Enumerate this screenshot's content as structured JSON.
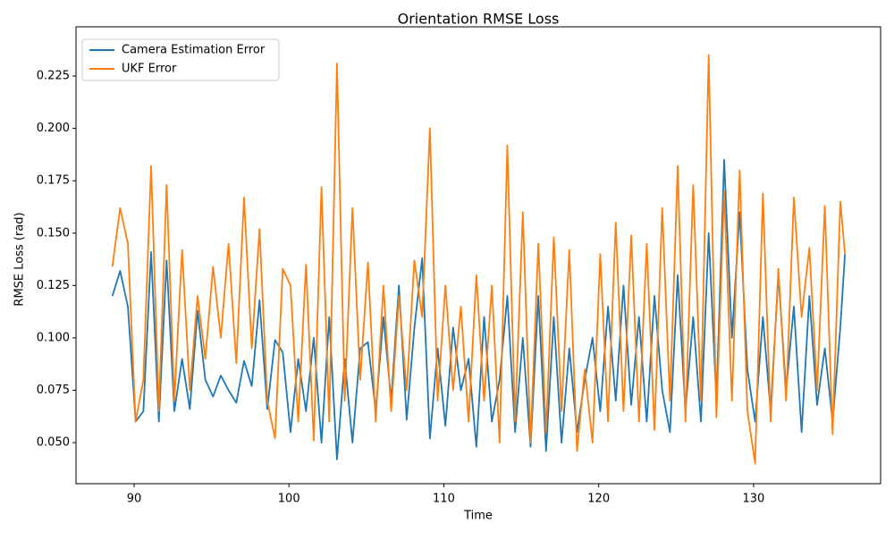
{
  "chart_data": {
    "type": "line",
    "title": "Orientation RMSE Loss",
    "x_label": "Time",
    "y_label": "RMSE Loss (rad)",
    "x": [
      88.6,
      89.1,
      89.6,
      90.1,
      90.6,
      91.1,
      91.6,
      92.1,
      92.6,
      93.1,
      93.6,
      94.1,
      94.6,
      95.1,
      95.6,
      96.1,
      96.6,
      97.1,
      97.6,
      98.1,
      98.6,
      99.1,
      99.6,
      100.1,
      100.6,
      101.1,
      101.6,
      102.1,
      102.6,
      103.1,
      103.6,
      104.1,
      104.6,
      105.1,
      105.6,
      106.1,
      106.6,
      107.1,
      107.6,
      108.1,
      108.6,
      109.1,
      109.6,
      110.1,
      110.6,
      111.1,
      111.6,
      112.1,
      112.6,
      113.1,
      113.6,
      114.1,
      114.6,
      115.1,
      115.6,
      116.1,
      116.6,
      117.1,
      117.6,
      118.1,
      118.6,
      119.1,
      119.6,
      120.1,
      120.6,
      121.1,
      121.6,
      122.1,
      122.6,
      123.1,
      123.6,
      124.1,
      124.6,
      125.1,
      125.6,
      126.1,
      126.6,
      127.1,
      127.6,
      128.1,
      128.6,
      129.1,
      129.6,
      130.1,
      130.6,
      131.1,
      131.6,
      132.1,
      132.6,
      133.1,
      133.6,
      134.1,
      134.6,
      135.1,
      135.6,
      135.9
    ],
    "series": [
      {
        "name": "Camera Estimation Error",
        "color": "#1f77b4",
        "values": [
          0.12,
          0.132,
          0.115,
          0.06,
          0.065,
          0.141,
          0.06,
          0.137,
          0.065,
          0.09,
          0.066,
          0.113,
          0.08,
          0.072,
          0.082,
          0.075,
          0.069,
          0.089,
          0.077,
          0.118,
          0.066,
          0.099,
          0.093,
          0.055,
          0.09,
          0.065,
          0.1,
          0.05,
          0.11,
          0.042,
          0.09,
          0.05,
          0.095,
          0.098,
          0.065,
          0.11,
          0.07,
          0.125,
          0.061,
          0.105,
          0.138,
          0.052,
          0.095,
          0.058,
          0.105,
          0.075,
          0.09,
          0.048,
          0.11,
          0.06,
          0.08,
          0.12,
          0.055,
          0.1,
          0.048,
          0.12,
          0.046,
          0.11,
          0.05,
          0.095,
          0.055,
          0.08,
          0.1,
          0.065,
          0.115,
          0.07,
          0.125,
          0.068,
          0.11,
          0.06,
          0.12,
          0.075,
          0.055,
          0.13,
          0.065,
          0.11,
          0.06,
          0.15,
          0.07,
          0.185,
          0.1,
          0.16,
          0.085,
          0.06,
          0.11,
          0.065,
          0.13,
          0.075,
          0.115,
          0.055,
          0.12,
          0.068,
          0.095,
          0.06,
          0.105,
          0.14
        ]
      },
      {
        "name": "UKF Error",
        "color": "#ff7f0e",
        "values": [
          0.134,
          0.162,
          0.145,
          0.06,
          0.08,
          0.182,
          0.065,
          0.173,
          0.07,
          0.142,
          0.075,
          0.12,
          0.09,
          0.134,
          0.1,
          0.145,
          0.088,
          0.167,
          0.095,
          0.152,
          0.07,
          0.052,
          0.133,
          0.125,
          0.06,
          0.135,
          0.051,
          0.172,
          0.06,
          0.231,
          0.07,
          0.162,
          0.08,
          0.136,
          0.06,
          0.125,
          0.065,
          0.12,
          0.075,
          0.137,
          0.11,
          0.2,
          0.07,
          0.125,
          0.075,
          0.115,
          0.06,
          0.13,
          0.07,
          0.125,
          0.05,
          0.192,
          0.06,
          0.16,
          0.05,
          0.145,
          0.055,
          0.148,
          0.065,
          0.142,
          0.046,
          0.085,
          0.05,
          0.14,
          0.06,
          0.155,
          0.065,
          0.149,
          0.06,
          0.145,
          0.056,
          0.162,
          0.07,
          0.182,
          0.06,
          0.173,
          0.07,
          0.235,
          0.062,
          0.17,
          0.07,
          0.18,
          0.065,
          0.04,
          0.169,
          0.06,
          0.133,
          0.07,
          0.167,
          0.11,
          0.143,
          0.075,
          0.163,
          0.054,
          0.165,
          0.14
        ]
      }
    ],
    "xlim": [
      86.25,
      138.2
    ],
    "xticks": [
      90,
      100,
      110,
      120,
      130
    ],
    "ylim": [
      0.0304,
      0.2485
    ],
    "yticks": [
      {
        "value": 0.05,
        "label": "0.050"
      },
      {
        "value": 0.075,
        "label": "0.075"
      },
      {
        "value": 0.1,
        "label": "0.100"
      },
      {
        "value": 0.125,
        "label": "0.125"
      },
      {
        "value": 0.15,
        "label": "0.150"
      },
      {
        "value": 0.175,
        "label": "0.175"
      },
      {
        "value": 0.2,
        "label": "0.200"
      },
      {
        "value": 0.225,
        "label": "0.225"
      }
    ],
    "legend": "upper left"
  }
}
